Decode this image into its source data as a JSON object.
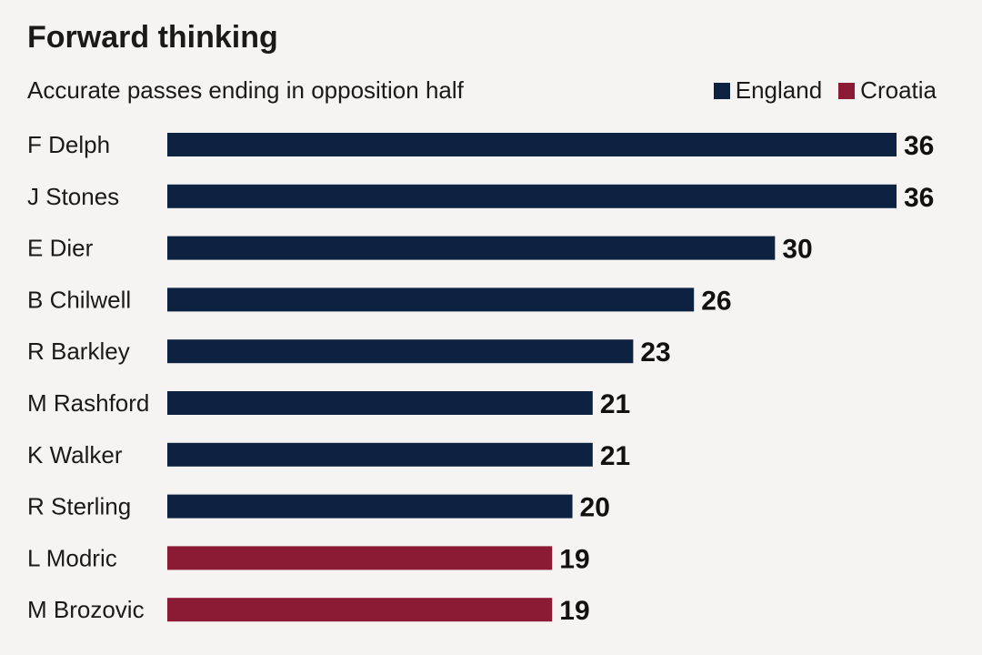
{
  "chart_data": {
    "type": "bar",
    "orientation": "horizontal",
    "title": "Forward thinking",
    "subtitle": "Accurate passes ending in opposition half",
    "legend": [
      {
        "name": "England",
        "color": "#0d2240"
      },
      {
        "name": "Croatia",
        "color": "#8b1a34"
      }
    ],
    "legend_position": "top-right",
    "grid": false,
    "xlim": [
      0,
      36
    ],
    "categories": [
      "F Delph",
      "J Stones",
      "E Dier",
      "B Chilwell",
      "R Barkley",
      "M Rashford",
      "K Walker",
      "R Sterling",
      "L Modric",
      "M Brozovic"
    ],
    "values": [
      36,
      36,
      30,
      26,
      23,
      21,
      21,
      20,
      19,
      19
    ],
    "teams": [
      "England",
      "England",
      "England",
      "England",
      "England",
      "England",
      "England",
      "England",
      "Croatia",
      "Croatia"
    ],
    "data_labels": [
      "36",
      "36",
      "30",
      "26",
      "23",
      "21",
      "21",
      "20",
      "19",
      "19"
    ]
  }
}
